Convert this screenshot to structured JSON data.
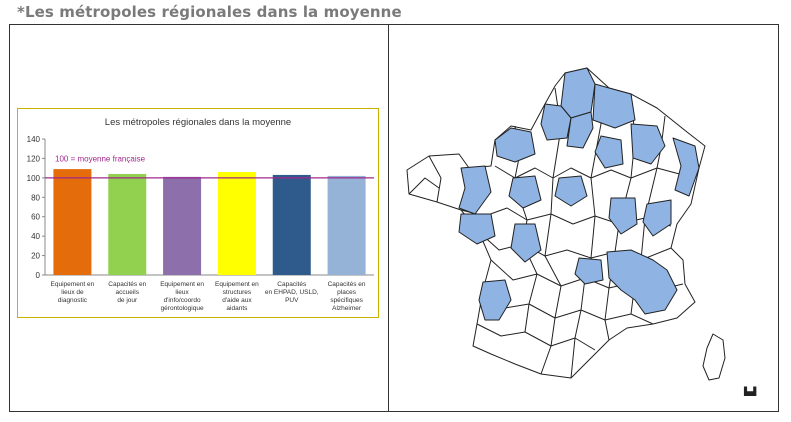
{
  "header": {
    "title": "*Les métropoles régionales dans la moyenne"
  },
  "colors": {
    "reference_line": "#a0288c",
    "map_highlight": "#8fb4e3",
    "map_border": "#333333",
    "chart_frame": "#c8b400"
  },
  "chart_data": {
    "type": "bar",
    "title": "Les métropoles régionales dans la moyenne",
    "xlabel": "",
    "ylabel": "",
    "ylim": [
      0,
      140
    ],
    "yticks": [
      0,
      20,
      40,
      60,
      80,
      100,
      120,
      140
    ],
    "grid": false,
    "legend": "none",
    "categories": [
      [
        "Equipement en",
        "lieux de",
        "diagnostic"
      ],
      [
        "Capacités en",
        "accueils",
        "de jour"
      ],
      [
        "Equipement en",
        "lieux",
        "d'info/coordo",
        "gérontologique"
      ],
      [
        "Equipement en",
        "structures",
        "d'aide aux",
        "aidants"
      ],
      [
        "Capacités",
        "en EHPAD, USLD,",
        "PUV"
      ],
      [
        "Capacités en",
        "places",
        "spécifiques",
        "Alzheimer"
      ]
    ],
    "values": [
      109,
      104,
      101,
      106,
      103,
      102
    ],
    "bar_colors": [
      "#e46c0a",
      "#92d050",
      "#8c6fab",
      "#ffff00",
      "#2e5a8c",
      "#95b3d7"
    ],
    "reference": {
      "value": 100,
      "label": "100 = moyenne française"
    }
  },
  "map": {
    "description_name": "France departments map",
    "highlight_color": "#8fb4e3"
  }
}
